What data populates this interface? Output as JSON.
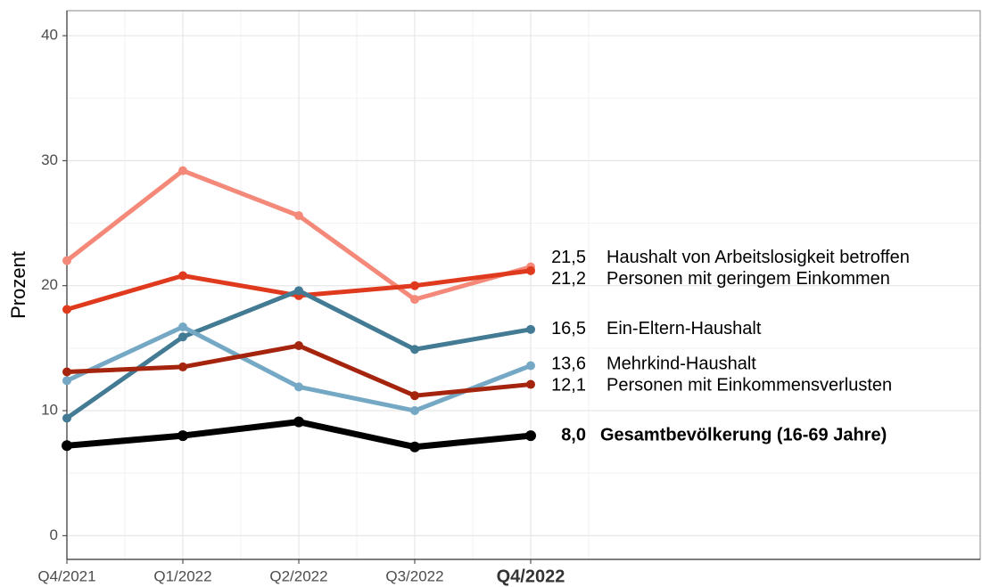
{
  "chart_data": {
    "type": "line",
    "y_label": "Prozent",
    "categories": [
      "Q4/2021",
      "Q1/2022",
      "Q2/2022",
      "Q3/2022",
      "Q4/2022"
    ],
    "ylim": [
      -1.9,
      42
    ],
    "yticks": [
      0,
      10,
      20,
      30,
      40
    ],
    "grid": true,
    "series": [
      {
        "name": "Haushalt von Arbeitslosigkeit betroffen",
        "color": "#f4897a",
        "values": [
          22.0,
          29.2,
          25.6,
          18.9,
          21.5
        ],
        "value_labels": [
          null,
          null,
          null,
          null,
          "21,5"
        ]
      },
      {
        "name": "Personen mit geringem Einkommen",
        "color": "#e03a1e",
        "values": [
          18.1,
          20.8,
          19.2,
          20.0,
          21.2
        ],
        "value_labels": [
          null,
          null,
          null,
          null,
          "21,2"
        ]
      },
      {
        "name": "Ein-Eltern-Haushalt",
        "color": "#437a94",
        "values": [
          9.4,
          15.9,
          19.6,
          14.9,
          16.5
        ],
        "value_labels": [
          null,
          null,
          null,
          null,
          "16,5"
        ]
      },
      {
        "name": "Mehrkind-Haushalt",
        "color": "#75a8c4",
        "values": [
          12.4,
          16.7,
          11.9,
          10.0,
          13.6
        ],
        "value_labels": [
          null,
          null,
          null,
          null,
          "13,6"
        ]
      },
      {
        "name": "Personen mit Einkommensverlusten",
        "color": "#a5240e",
        "values": [
          13.1,
          13.5,
          15.2,
          11.2,
          12.1
        ],
        "value_labels": [
          null,
          null,
          null,
          null,
          "12,1"
        ]
      },
      {
        "name": "Gesamtbevölkerung (16-69 Jahre)",
        "color": "#000000",
        "emphasis": true,
        "values": [
          7.2,
          8.0,
          9.1,
          7.1,
          8.0
        ],
        "value_labels": [
          null,
          null,
          null,
          null,
          "8,0"
        ]
      }
    ]
  }
}
